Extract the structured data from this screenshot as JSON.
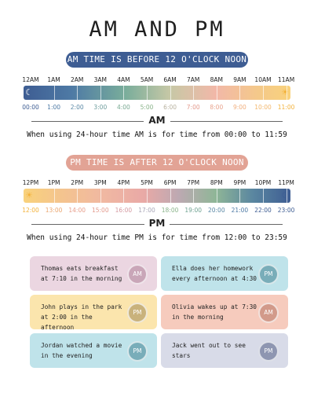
{
  "title": "AM AND PM",
  "am_section": {
    "banner": "AM TIME IS BEFORE 12 O'CLOCK NOON",
    "hours": [
      "12AM",
      "1AM",
      "2AM",
      "3AM",
      "4AM",
      "5AM",
      "6AM",
      "7AM",
      "8AM",
      "9AM",
      "10AM",
      "11AM"
    ],
    "times": [
      "00:00",
      "1:00",
      "2:00",
      "3:00",
      "4:00",
      "5:00",
      "6:00",
      "7:00",
      "8:00",
      "9:00",
      "10:00",
      "11:00"
    ],
    "time_colors": [
      "#3e5d93",
      "#4e7aa5",
      "#5a88a5",
      "#6d9c9c",
      "#7aa993",
      "#8ab38a",
      "#b8b2a0",
      "#e39a8d",
      "#e8a38d",
      "#f0ae7d",
      "#f2b66c",
      "#f3b23b"
    ],
    "label": "AM",
    "description": "When using 24-hour time AM is for time from 00:00 to 11:59",
    "left_icon": "moon-icon",
    "right_icon": "sun-icon"
  },
  "pm_section": {
    "banner": "PM TIME IS AFTER 12 O'CLOCK NOON",
    "hours": [
      "12PM",
      "1PM",
      "2PM",
      "3PM",
      "4PM",
      "5PM",
      "6PM",
      "7PM",
      "8PM",
      "9PM",
      "10PM",
      "11PM"
    ],
    "times": [
      "12:00",
      "13:00",
      "14:00",
      "15:00",
      "16:00",
      "17:00",
      "18:00",
      "19:00",
      "20:00",
      "21:00",
      "22:00",
      "23:00"
    ],
    "time_colors": [
      "#f3b23b",
      "#eaa66f",
      "#e79d8a",
      "#e39a8d",
      "#d59aa2",
      "#a8a6b7",
      "#8ab38a",
      "#6fa291",
      "#5a88a5",
      "#4e7aa5",
      "#3e5d93",
      "#3e5d93"
    ],
    "label": "PM",
    "description": "When using 24-hour time PM is for time from 12:00 to 23:59",
    "left_icon": "sun-icon",
    "right_icon": "moon-icon"
  },
  "cards": [
    {
      "text": "Thomas eats breakfast at 7:10 in the morning",
      "badge": "AM",
      "bg": "#ebd6e1",
      "badge_color": "#c9a6b8"
    },
    {
      "text": "Ella does her homework every afternoon at 4:30",
      "badge": "PM",
      "bg": "#bfe3ea",
      "badge_color": "#79adb9"
    },
    {
      "text": "John plays in the park at 2:00 in the afternoon",
      "badge": "PM",
      "bg": "#fbe5ad",
      "badge_color": "#c9b27c"
    },
    {
      "text": "Olivia wakes up at 7:30 in the morning",
      "badge": "AM",
      "bg": "#f6cbbd",
      "badge_color": "#d29a8a"
    },
    {
      "text": "Jordan watched a movie in the evening",
      "badge": "PM",
      "bg": "#bfe3ea",
      "badge_color": "#79adb9"
    },
    {
      "text": "Jack went out to see stars",
      "badge": "PM",
      "bg": "#d8dbe8",
      "badge_color": "#8e96b1"
    }
  ]
}
